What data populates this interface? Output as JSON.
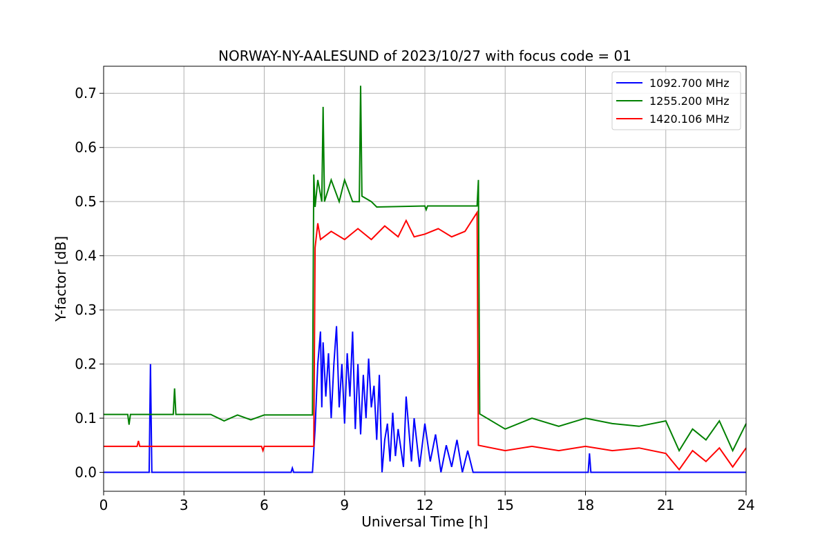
{
  "chart_data": {
    "type": "line",
    "title": "NORWAY-NY-AALESUND of 2023/10/27 with focus code = 01",
    "xlabel": "Universal Time [h]",
    "ylabel": "Y-factor [dB]",
    "xlim": [
      0,
      24
    ],
    "ylim": [
      -0.035,
      0.75
    ],
    "xticks": [
      0,
      3,
      6,
      9,
      12,
      15,
      18,
      21,
      24
    ],
    "yticks": [
      0.0,
      0.1,
      0.2,
      0.3,
      0.4,
      0.5,
      0.6,
      0.7
    ],
    "xtick_labels": [
      "0",
      "3",
      "6",
      "9",
      "12",
      "15",
      "18",
      "21",
      "24"
    ],
    "ytick_labels": [
      "0.0",
      "0.1",
      "0.2",
      "0.3",
      "0.4",
      "0.5",
      "0.6",
      "0.7"
    ],
    "grid": true,
    "legend_position": "top-right",
    "series": [
      {
        "name": "1092.700 MHz",
        "color": "#0000ff",
        "points": [
          [
            0,
            0.0
          ],
          [
            1.7,
            0.0
          ],
          [
            1.75,
            0.2
          ],
          [
            1.8,
            0.0
          ],
          [
            7.0,
            0.0
          ],
          [
            7.05,
            0.008
          ],
          [
            7.1,
            0.0
          ],
          [
            7.8,
            0.0
          ],
          [
            7.9,
            0.08
          ],
          [
            8.0,
            0.2
          ],
          [
            8.1,
            0.26
          ],
          [
            8.15,
            0.12
          ],
          [
            8.2,
            0.24
          ],
          [
            8.3,
            0.14
          ],
          [
            8.4,
            0.22
          ],
          [
            8.5,
            0.1
          ],
          [
            8.6,
            0.2
          ],
          [
            8.7,
            0.27
          ],
          [
            8.8,
            0.12
          ],
          [
            8.9,
            0.2
          ],
          [
            9.0,
            0.09
          ],
          [
            9.1,
            0.22
          ],
          [
            9.2,
            0.14
          ],
          [
            9.3,
            0.26
          ],
          [
            9.4,
            0.08
          ],
          [
            9.5,
            0.2
          ],
          [
            9.6,
            0.07
          ],
          [
            9.7,
            0.18
          ],
          [
            9.8,
            0.1
          ],
          [
            9.9,
            0.21
          ],
          [
            10.0,
            0.12
          ],
          [
            10.1,
            0.16
          ],
          [
            10.2,
            0.06
          ],
          [
            10.3,
            0.18
          ],
          [
            10.4,
            0.0
          ],
          [
            10.5,
            0.06
          ],
          [
            10.6,
            0.09
          ],
          [
            10.7,
            0.02
          ],
          [
            10.8,
            0.11
          ],
          [
            10.9,
            0.03
          ],
          [
            11.0,
            0.08
          ],
          [
            11.2,
            0.01
          ],
          [
            11.3,
            0.14
          ],
          [
            11.5,
            0.02
          ],
          [
            11.6,
            0.1
          ],
          [
            11.8,
            0.01
          ],
          [
            12.0,
            0.09
          ],
          [
            12.2,
            0.02
          ],
          [
            12.4,
            0.07
          ],
          [
            12.6,
            0.0
          ],
          [
            12.8,
            0.05
          ],
          [
            13.0,
            0.01
          ],
          [
            13.2,
            0.06
          ],
          [
            13.4,
            0.0
          ],
          [
            13.6,
            0.04
          ],
          [
            13.8,
            0.0
          ],
          [
            14.0,
            0.0
          ],
          [
            18.1,
            0.0
          ],
          [
            18.15,
            0.035
          ],
          [
            18.2,
            0.0
          ],
          [
            24,
            0.0
          ]
        ]
      },
      {
        "name": "1255.200 MHz",
        "color": "#008000",
        "points": [
          [
            0,
            0.107
          ],
          [
            0.9,
            0.107
          ],
          [
            0.95,
            0.088
          ],
          [
            1.0,
            0.107
          ],
          [
            2.6,
            0.107
          ],
          [
            2.65,
            0.155
          ],
          [
            2.7,
            0.107
          ],
          [
            4.0,
            0.107
          ],
          [
            4.5,
            0.095
          ],
          [
            5.0,
            0.106
          ],
          [
            5.5,
            0.097
          ],
          [
            6.0,
            0.106
          ],
          [
            7.8,
            0.106
          ],
          [
            7.85,
            0.55
          ],
          [
            7.9,
            0.49
          ],
          [
            8.0,
            0.54
          ],
          [
            8.15,
            0.5
          ],
          [
            8.2,
            0.675
          ],
          [
            8.25,
            0.5
          ],
          [
            8.5,
            0.54
          ],
          [
            8.8,
            0.5
          ],
          [
            9.0,
            0.54
          ],
          [
            9.3,
            0.5
          ],
          [
            9.55,
            0.5
          ],
          [
            9.6,
            0.714
          ],
          [
            9.65,
            0.51
          ],
          [
            10.0,
            0.5
          ],
          [
            10.2,
            0.49
          ],
          [
            12.0,
            0.492
          ],
          [
            12.05,
            0.485
          ],
          [
            12.1,
            0.492
          ],
          [
            13.95,
            0.492
          ],
          [
            14.0,
            0.54
          ],
          [
            14.05,
            0.108
          ],
          [
            15.0,
            0.08
          ],
          [
            16.0,
            0.1
          ],
          [
            17.0,
            0.085
          ],
          [
            18.0,
            0.1
          ],
          [
            19.0,
            0.09
          ],
          [
            20.0,
            0.085
          ],
          [
            21.0,
            0.095
          ],
          [
            21.5,
            0.04
          ],
          [
            22.0,
            0.08
          ],
          [
            22.5,
            0.06
          ],
          [
            23.0,
            0.095
          ],
          [
            23.5,
            0.04
          ],
          [
            24.0,
            0.09
          ]
        ]
      },
      {
        "name": "1420.106 MHz",
        "color": "#ff0000",
        "points": [
          [
            0,
            0.048
          ],
          [
            1.25,
            0.048
          ],
          [
            1.3,
            0.058
          ],
          [
            1.35,
            0.048
          ],
          [
            5.9,
            0.048
          ],
          [
            5.95,
            0.04
          ],
          [
            6.0,
            0.048
          ],
          [
            7.85,
            0.048
          ],
          [
            7.9,
            0.415
          ],
          [
            8.0,
            0.46
          ],
          [
            8.1,
            0.43
          ],
          [
            8.5,
            0.445
          ],
          [
            9.0,
            0.43
          ],
          [
            9.5,
            0.45
          ],
          [
            10.0,
            0.43
          ],
          [
            10.5,
            0.455
          ],
          [
            11.0,
            0.435
          ],
          [
            11.3,
            0.465
          ],
          [
            11.6,
            0.435
          ],
          [
            12.0,
            0.44
          ],
          [
            12.5,
            0.45
          ],
          [
            13.0,
            0.435
          ],
          [
            13.5,
            0.445
          ],
          [
            13.95,
            0.48
          ],
          [
            14.0,
            0.05
          ],
          [
            15.0,
            0.04
          ],
          [
            16.0,
            0.048
          ],
          [
            17.0,
            0.04
          ],
          [
            18.0,
            0.048
          ],
          [
            19.0,
            0.04
          ],
          [
            20.0,
            0.045
          ],
          [
            21.0,
            0.035
          ],
          [
            21.5,
            0.005
          ],
          [
            22.0,
            0.04
          ],
          [
            22.5,
            0.02
          ],
          [
            23.0,
            0.045
          ],
          [
            23.5,
            0.01
          ],
          [
            24.0,
            0.045
          ]
        ]
      }
    ]
  }
}
